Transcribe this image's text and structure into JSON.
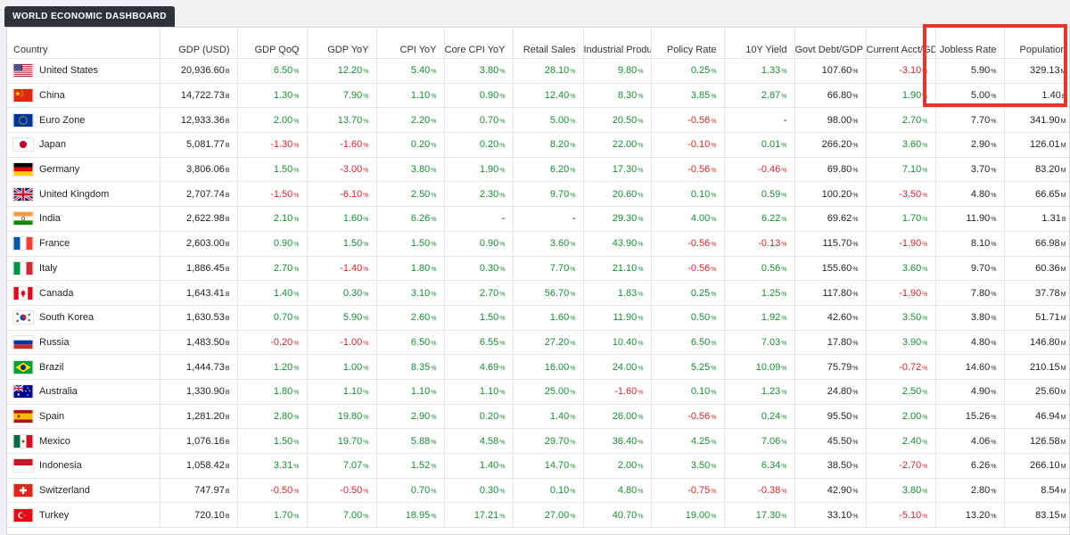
{
  "app": {
    "title": "WORLD ECONOMIC DASHBOARD"
  },
  "colors": {
    "positive": "#1a8a35",
    "negative": "#d0262c",
    "highlight": "#e8352b",
    "tab": "#2f3338"
  },
  "columns": [
    {
      "key": "country",
      "label": "Country"
    },
    {
      "key": "gdp",
      "label": "GDP (USD)"
    },
    {
      "key": "gdp_qoq",
      "label": "GDP QoQ"
    },
    {
      "key": "gdp_yoy",
      "label": "GDP YoY"
    },
    {
      "key": "cpi_yoy",
      "label": "CPI YoY"
    },
    {
      "key": "core_cpi",
      "label": "Core CPI YoY"
    },
    {
      "key": "retail",
      "label": "Retail Sales"
    },
    {
      "key": "industrial",
      "label": "Industrial Production"
    },
    {
      "key": "policy",
      "label": "Policy Rate"
    },
    {
      "key": "yield10",
      "label": "10Y Yield"
    },
    {
      "key": "debt",
      "label": "Govt Debt/GDP"
    },
    {
      "key": "current",
      "label": "Current Acct/GDP"
    },
    {
      "key": "jobless",
      "label": "Jobless Rate"
    },
    {
      "key": "population",
      "label": "Population"
    }
  ],
  "rows": [
    {
      "flag": "flag-us",
      "country": "United States",
      "gdp": "20,936.60",
      "gdp_qoq": "6.50",
      "gdp_yoy": "12.20",
      "cpi_yoy": "5.40",
      "core_cpi": "3.80",
      "retail": "28.10",
      "industrial": "9.80",
      "policy": "0.25",
      "yield10": "1.33",
      "debt": "107.60",
      "current": "-3.10",
      "jobless": "5.90",
      "population": "329.13",
      "pop_unit": "M"
    },
    {
      "flag": "flag-cn",
      "country": "China",
      "gdp": "14,722.73",
      "gdp_qoq": "1.30",
      "gdp_yoy": "7.90",
      "cpi_yoy": "1.10",
      "core_cpi": "0.90",
      "retail": "12.40",
      "industrial": "8.30",
      "policy": "3.85",
      "yield10": "2.87",
      "debt": "66.80",
      "current": "1.90",
      "jobless": "5.00",
      "population": "1.40",
      "pop_unit": "B"
    },
    {
      "flag": "flag-eu",
      "country": "Euro Zone",
      "gdp": "12,933.36",
      "gdp_qoq": "2.00",
      "gdp_yoy": "13.70",
      "cpi_yoy": "2.20",
      "core_cpi": "0.70",
      "retail": "5.00",
      "industrial": "20.50",
      "policy": "-0.56",
      "yield10": "-",
      "debt": "98.00",
      "current": "2.70",
      "jobless": "7.70",
      "population": "341.90",
      "pop_unit": "M"
    },
    {
      "flag": "flag-jp",
      "country": "Japan",
      "gdp": "5,081.77",
      "gdp_qoq": "-1.30",
      "gdp_yoy": "-1.60",
      "cpi_yoy": "0.20",
      "core_cpi": "0.20",
      "retail": "8.20",
      "industrial": "22.00",
      "policy": "-0.10",
      "yield10": "0.01",
      "debt": "266.20",
      "current": "3.60",
      "jobless": "2.90",
      "population": "126.01",
      "pop_unit": "M"
    },
    {
      "flag": "flag-de",
      "country": "Germany",
      "gdp": "3,806.06",
      "gdp_qoq": "1.50",
      "gdp_yoy": "-3.00",
      "cpi_yoy": "3.80",
      "core_cpi": "1.90",
      "retail": "6.20",
      "industrial": "17.30",
      "policy": "-0.56",
      "yield10": "-0.46",
      "debt": "69.80",
      "current": "7.10",
      "jobless": "3.70",
      "population": "83.20",
      "pop_unit": "M"
    },
    {
      "flag": "flag-gb",
      "country": "United Kingdom",
      "gdp": "2,707.74",
      "gdp_qoq": "-1.50",
      "gdp_yoy": "-6.10",
      "cpi_yoy": "2.50",
      "core_cpi": "2.30",
      "retail": "9.70",
      "industrial": "20.60",
      "policy": "0.10",
      "yield10": "0.59",
      "debt": "100.20",
      "current": "-3.50",
      "jobless": "4.80",
      "population": "66.65",
      "pop_unit": "M"
    },
    {
      "flag": "flag-in",
      "country": "India",
      "gdp": "2,622.98",
      "gdp_qoq": "2.10",
      "gdp_yoy": "1.60",
      "cpi_yoy": "6.26",
      "core_cpi": "-",
      "retail": "-",
      "industrial": "29.30",
      "policy": "4.00",
      "yield10": "6.22",
      "debt": "69.62",
      "current": "1.70",
      "jobless": "11.90",
      "population": "1.31",
      "pop_unit": "B"
    },
    {
      "flag": "flag-fr",
      "country": "France",
      "gdp": "2,603.00",
      "gdp_qoq": "0.90",
      "gdp_yoy": "1.50",
      "cpi_yoy": "1.50",
      "core_cpi": "0.90",
      "retail": "3.60",
      "industrial": "43.90",
      "policy": "-0.56",
      "yield10": "-0.13",
      "debt": "115.70",
      "current": "-1.90",
      "jobless": "8.10",
      "population": "66.98",
      "pop_unit": "M"
    },
    {
      "flag": "flag-it",
      "country": "Italy",
      "gdp": "1,886.45",
      "gdp_qoq": "2.70",
      "gdp_yoy": "-1.40",
      "cpi_yoy": "1.80",
      "core_cpi": "0.30",
      "retail": "7.70",
      "industrial": "21.10",
      "policy": "-0.56",
      "yield10": "0.56",
      "debt": "155.60",
      "current": "3.60",
      "jobless": "9.70",
      "population": "60.36",
      "pop_unit": "M"
    },
    {
      "flag": "flag-ca",
      "country": "Canada",
      "gdp": "1,643.41",
      "gdp_qoq": "1.40",
      "gdp_yoy": "0.30",
      "cpi_yoy": "3.10",
      "core_cpi": "2.70",
      "retail": "56.70",
      "industrial": "1.83",
      "policy": "0.25",
      "yield10": "1.25",
      "debt": "117.80",
      "current": "-1.90",
      "jobless": "7.80",
      "population": "37.78",
      "pop_unit": "M"
    },
    {
      "flag": "flag-kr",
      "country": "South Korea",
      "gdp": "1,630.53",
      "gdp_qoq": "0.70",
      "gdp_yoy": "5.90",
      "cpi_yoy": "2.60",
      "core_cpi": "1.50",
      "retail": "1.60",
      "industrial": "11.90",
      "policy": "0.50",
      "yield10": "1.92",
      "debt": "42.60",
      "current": "3.50",
      "jobless": "3.80",
      "population": "51.71",
      "pop_unit": "M"
    },
    {
      "flag": "flag-ru",
      "country": "Russia",
      "gdp": "1,483.50",
      "gdp_qoq": "-0.20",
      "gdp_yoy": "-1.00",
      "cpi_yoy": "6.50",
      "core_cpi": "6.55",
      "retail": "27.20",
      "industrial": "10.40",
      "policy": "6.50",
      "yield10": "7.03",
      "debt": "17.80",
      "current": "3.90",
      "jobless": "4.80",
      "population": "146.80",
      "pop_unit": "M"
    },
    {
      "flag": "flag-br",
      "country": "Brazil",
      "gdp": "1,444.73",
      "gdp_qoq": "1.20",
      "gdp_yoy": "1.00",
      "cpi_yoy": "8.35",
      "core_cpi": "4.69",
      "retail": "16.00",
      "industrial": "24.00",
      "policy": "5.25",
      "yield10": "10.09",
      "debt": "75.79",
      "current": "-0.72",
      "jobless": "14.60",
      "population": "210.15",
      "pop_unit": "M"
    },
    {
      "flag": "flag-au",
      "country": "Australia",
      "gdp": "1,330.90",
      "gdp_qoq": "1.80",
      "gdp_yoy": "1.10",
      "cpi_yoy": "1.10",
      "core_cpi": "1.10",
      "retail": "25.00",
      "industrial": "-1.60",
      "policy": "0.10",
      "yield10": "1.23",
      "debt": "24.80",
      "current": "2.50",
      "jobless": "4.90",
      "population": "25.60",
      "pop_unit": "M"
    },
    {
      "flag": "flag-es",
      "country": "Spain",
      "gdp": "1,281.20",
      "gdp_qoq": "2.80",
      "gdp_yoy": "19.80",
      "cpi_yoy": "2.90",
      "core_cpi": "0.20",
      "retail": "1.40",
      "industrial": "26.00",
      "policy": "-0.56",
      "yield10": "0.24",
      "debt": "95.50",
      "current": "2.00",
      "jobless": "15.26",
      "population": "46.94",
      "pop_unit": "M"
    },
    {
      "flag": "flag-mx",
      "country": "Mexico",
      "gdp": "1,076.16",
      "gdp_qoq": "1.50",
      "gdp_yoy": "19.70",
      "cpi_yoy": "5.88",
      "core_cpi": "4.58",
      "retail": "29.70",
      "industrial": "36.40",
      "policy": "4.25",
      "yield10": "7.06",
      "debt": "45.50",
      "current": "2.40",
      "jobless": "4.06",
      "population": "126.58",
      "pop_unit": "M"
    },
    {
      "flag": "flag-id",
      "country": "Indonesia",
      "gdp": "1,058.42",
      "gdp_qoq": "3.31",
      "gdp_yoy": "7.07",
      "cpi_yoy": "1.52",
      "core_cpi": "1.40",
      "retail": "14.70",
      "industrial": "2.00",
      "policy": "3.50",
      "yield10": "6.34",
      "debt": "38.50",
      "current": "-2.70",
      "jobless": "6.26",
      "population": "266.10",
      "pop_unit": "M"
    },
    {
      "flag": "flag-ch",
      "country": "Switzerland",
      "gdp": "747.97",
      "gdp_qoq": "-0.50",
      "gdp_yoy": "-0.50",
      "cpi_yoy": "0.70",
      "core_cpi": "0.30",
      "retail": "0.10",
      "industrial": "4.80",
      "policy": "-0.75",
      "yield10": "-0.38",
      "debt": "42.90",
      "current": "3.80",
      "jobless": "2.80",
      "population": "8.54",
      "pop_unit": "M"
    },
    {
      "flag": "flag-tr",
      "country": "Turkey",
      "gdp": "720.10",
      "gdp_qoq": "1.70",
      "gdp_yoy": "7.00",
      "cpi_yoy": "18.95",
      "core_cpi": "17.21",
      "retail": "27.00",
      "industrial": "40.70",
      "policy": "19.00",
      "yield10": "17.30",
      "debt": "33.10",
      "current": "-5.10",
      "jobless": "13.20",
      "population": "83.15",
      "pop_unit": "M"
    }
  ]
}
